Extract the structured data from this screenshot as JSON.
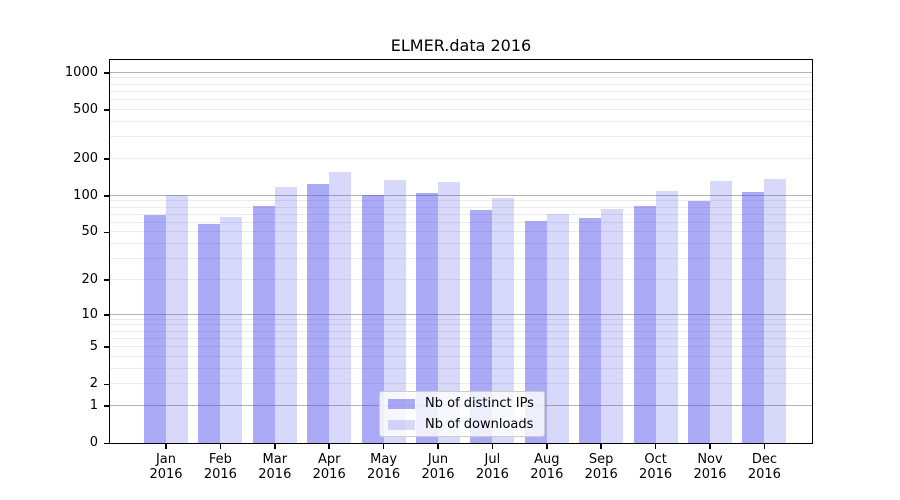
{
  "chart_data": {
    "type": "bar",
    "title": "ELMER.data 2016",
    "categories": [
      "Jan",
      "Feb",
      "Mar",
      "Apr",
      "May",
      "Jun",
      "Jul",
      "Aug",
      "Sep",
      "Oct",
      "Nov",
      "Dec"
    ],
    "category_year": "2016",
    "series": [
      {
        "name": "Nb of distinct IPs",
        "color": "rgba(70,70,235,0.46)",
        "values": [
          70,
          59,
          82,
          125,
          101,
          105,
          76,
          62,
          66,
          82,
          90,
          108
        ]
      },
      {
        "name": "Nb of downloads",
        "color": "rgba(70,70,235,0.21)",
        "values": [
          101,
          67,
          118,
          155,
          135,
          130,
          96,
          71,
          78,
          110,
          132,
          137
        ]
      }
    ],
    "y_axis": {
      "scale": "log1p",
      "tick_values": [
        0,
        1,
        2,
        5,
        10,
        20,
        50,
        100,
        200,
        500,
        1000
      ],
      "tick_labels": [
        "0",
        "1",
        "2",
        "5",
        "10",
        "20",
        "50",
        "100",
        "200",
        "500",
        "1000"
      ],
      "major_grid_values": [
        1,
        10,
        100,
        1000
      ],
      "minor_grid_values": [
        2,
        3,
        4,
        5,
        6,
        7,
        8,
        9,
        20,
        30,
        40,
        50,
        60,
        70,
        80,
        90,
        200,
        300,
        400,
        500,
        600,
        700,
        800,
        900
      ],
      "top_value": 1270
    },
    "legend_position": "lower center",
    "grid": true,
    "colors": {
      "bar_dark": "rgba(70,70,235,0.46)",
      "bar_light": "rgba(70,70,235,0.21)",
      "grid_major": "#b3b3b3",
      "grid_minor": "#ebebeb",
      "axis": "#000000",
      "legend_border": "#cccccc"
    }
  }
}
